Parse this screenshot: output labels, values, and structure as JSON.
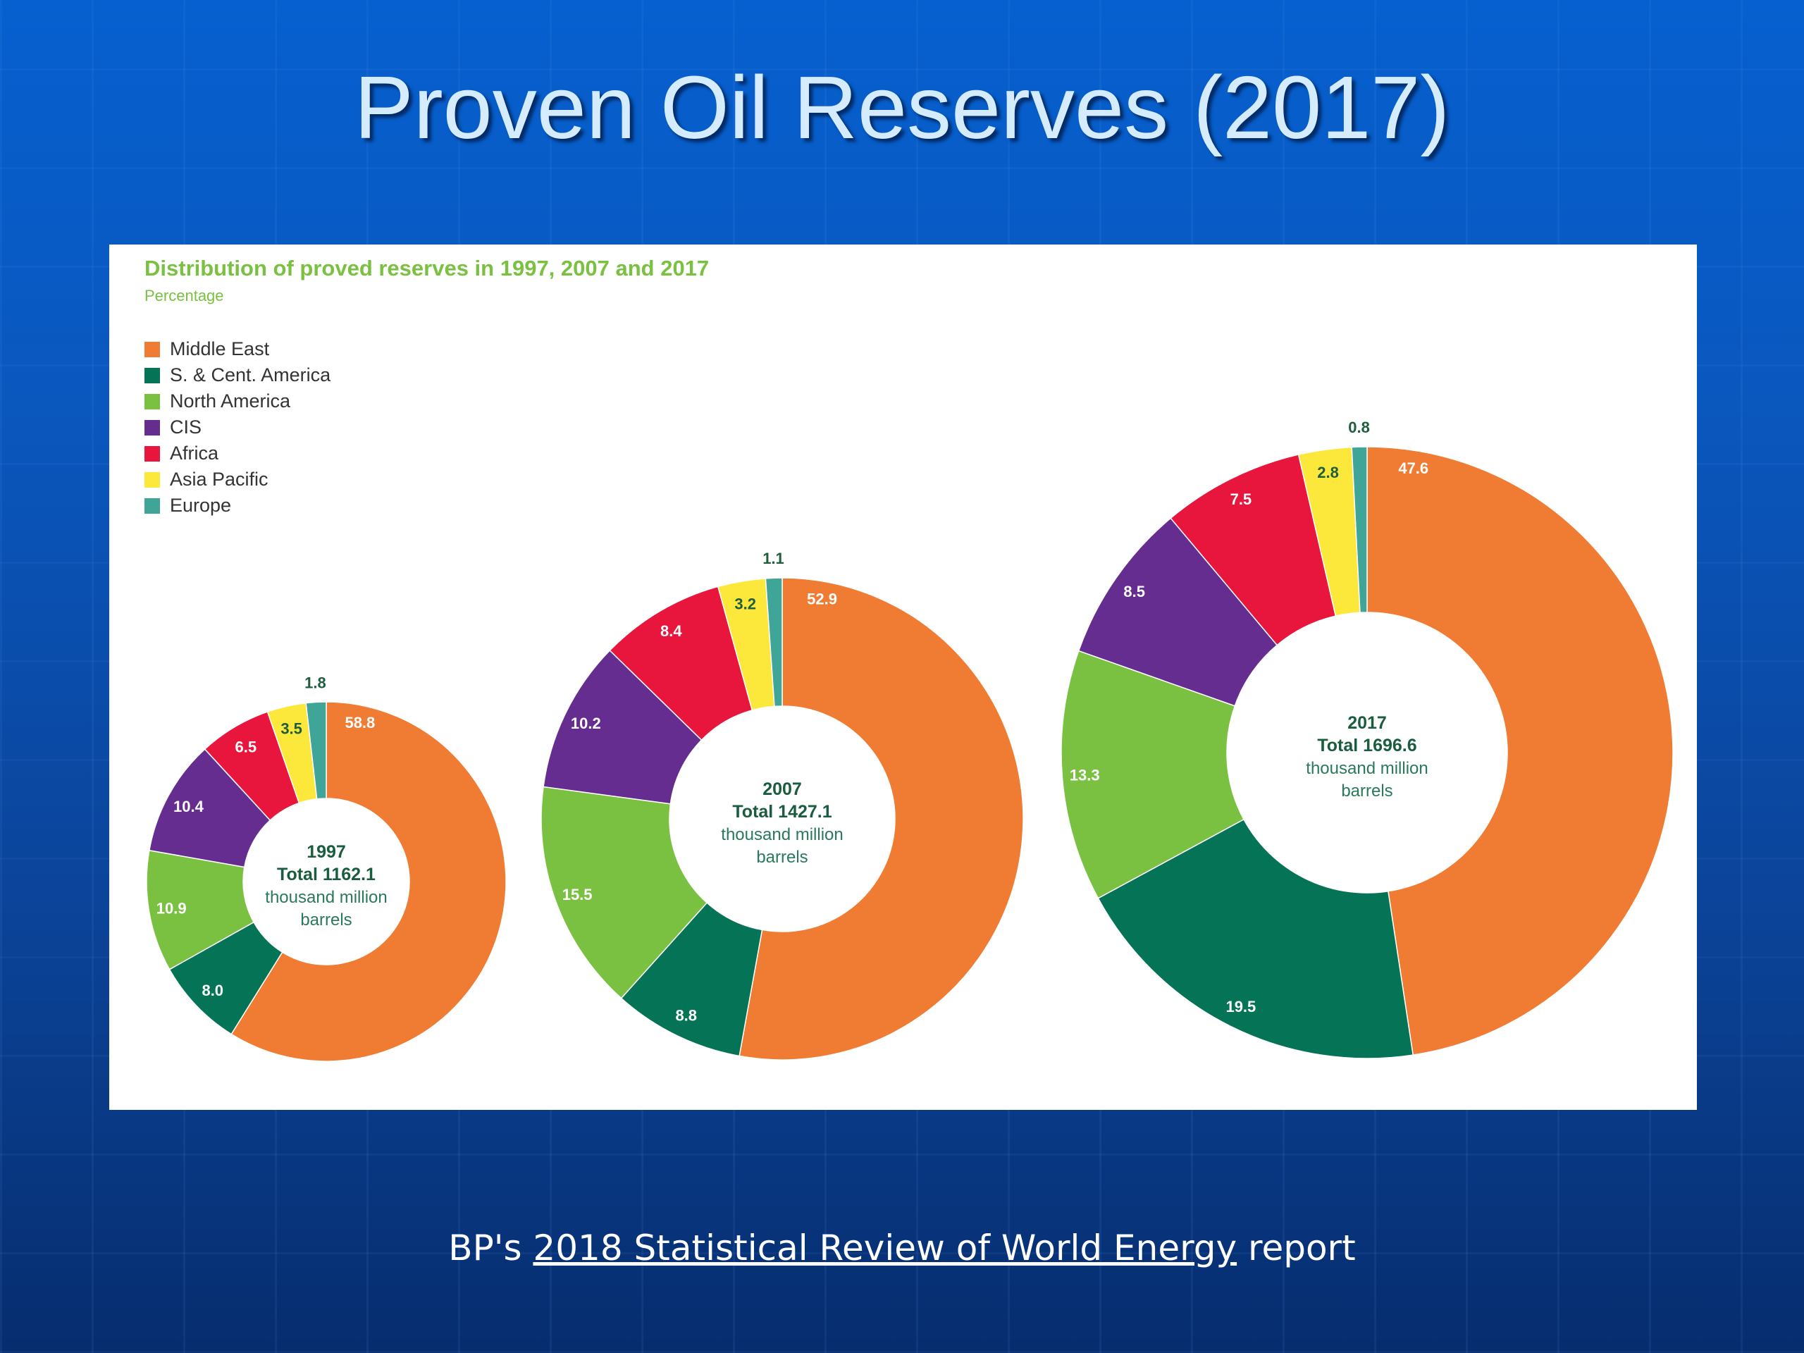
{
  "slide": {
    "title": "Proven Oil Reserves (2017)",
    "source": {
      "prefix": "BP's ",
      "link": "2018 Statistical Review of World Energy",
      "suffix": " report"
    }
  },
  "chart_data": {
    "type": "pie",
    "variant": "donut",
    "title": "Distribution of proved reserves in 1997, 2007 and 2017",
    "subtitle": "Percentage",
    "legend_position": "top-left",
    "regions": [
      {
        "name": "Middle East",
        "color": "#f07c33"
      },
      {
        "name": "S. & Cent. America",
        "color": "#047356"
      },
      {
        "name": "North America",
        "color": "#7ac142"
      },
      {
        "name": "CIS",
        "color": "#662d91"
      },
      {
        "name": "Africa",
        "color": "#e8153c"
      },
      {
        "name": "Asia Pacific",
        "color": "#fce83a"
      },
      {
        "name": "Europe",
        "color": "#3fa599"
      }
    ],
    "charts": [
      {
        "year": "1997",
        "total_label": "Total 1162.1",
        "unit_line1": "thousand million",
        "unit_line2": "barrels",
        "total": 1162.1,
        "values": [
          58.8,
          8.0,
          10.9,
          10.4,
          6.5,
          3.5,
          1.8
        ],
        "labels": [
          "58.8",
          "8.0",
          "10.9",
          "10.4",
          "6.5",
          "3.5",
          "1.8"
        ]
      },
      {
        "year": "2007",
        "total_label": "Total 1427.1",
        "unit_line1": "thousand million",
        "unit_line2": "barrels",
        "total": 1427.1,
        "values": [
          52.9,
          8.8,
          15.5,
          10.2,
          8.4,
          3.2,
          1.1
        ],
        "labels": [
          "52.9",
          "8.8",
          "15.5",
          "10.2",
          "8.4",
          "3.2",
          "1.1"
        ]
      },
      {
        "year": "2017",
        "total_label": "Total 1696.6",
        "unit_line1": "thousand million",
        "unit_line2": "barrels",
        "total": 1696.6,
        "values": [
          47.6,
          19.5,
          13.3,
          8.5,
          7.5,
          2.8,
          0.8
        ],
        "labels": [
          "47.6",
          "19.5",
          "13.3",
          "8.5",
          "7.5",
          "2.8",
          "0.8"
        ]
      }
    ]
  }
}
